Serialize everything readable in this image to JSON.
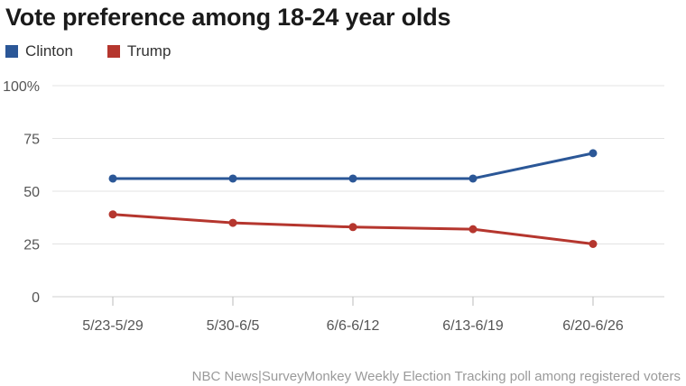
{
  "chart_data": {
    "type": "line",
    "title": "Vote preference among 18-24 year olds",
    "categories": [
      "5/23-5/29",
      "5/30-6/5",
      "6/6-6/12",
      "6/13-6/19",
      "6/20-6/26"
    ],
    "series": [
      {
        "name": "Clinton",
        "color": "#2b5797",
        "values": [
          56,
          56,
          56,
          56,
          68
        ]
      },
      {
        "name": "Trump",
        "color": "#b5362e",
        "values": [
          39,
          35,
          33,
          32,
          25
        ]
      }
    ],
    "yticks": [
      "0",
      "25",
      "50",
      "75",
      "100%"
    ],
    "ylim": [
      0,
      100
    ],
    "grid": true,
    "legend_position": "top-left",
    "source": "NBC News|SurveyMonkey Weekly Election Tracking poll among registered voters"
  }
}
